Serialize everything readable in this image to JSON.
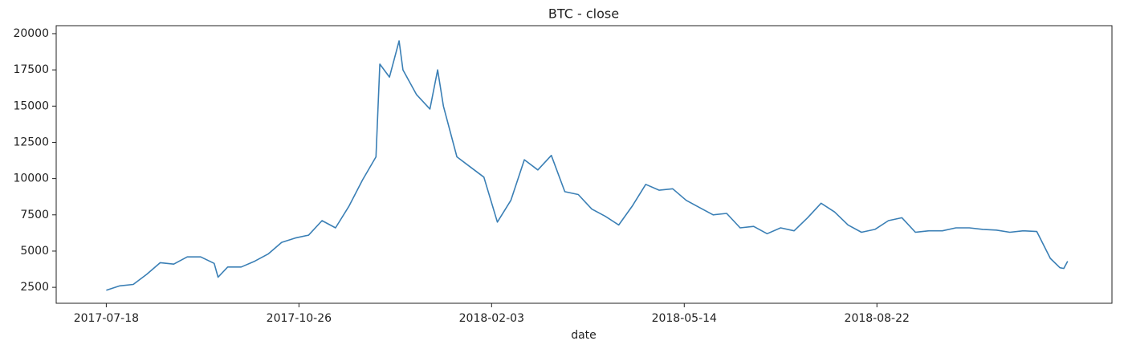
{
  "chart_data": {
    "type": "line",
    "title": "BTC - close",
    "xlabel": "date",
    "x": [
      "2017-07-18",
      "2017-07-25",
      "2017-08-01",
      "2017-08-08",
      "2017-08-15",
      "2017-08-22",
      "2017-08-29",
      "2017-09-05",
      "2017-09-12",
      "2017-09-14",
      "2017-09-19",
      "2017-09-26",
      "2017-10-03",
      "2017-10-10",
      "2017-10-17",
      "2017-10-24",
      "2017-10-31",
      "2017-11-07",
      "2017-11-14",
      "2017-11-21",
      "2017-11-28",
      "2017-12-05",
      "2017-12-07",
      "2017-12-12",
      "2017-12-17",
      "2017-12-19",
      "2017-12-26",
      "2018-01-02",
      "2018-01-06",
      "2018-01-09",
      "2018-01-16",
      "2018-01-23",
      "2018-01-30",
      "2018-02-06",
      "2018-02-13",
      "2018-02-20",
      "2018-02-27",
      "2018-03-06",
      "2018-03-13",
      "2018-03-20",
      "2018-03-27",
      "2018-04-03",
      "2018-04-10",
      "2018-04-17",
      "2018-04-24",
      "2018-05-01",
      "2018-05-08",
      "2018-05-15",
      "2018-05-22",
      "2018-05-29",
      "2018-06-05",
      "2018-06-12",
      "2018-06-19",
      "2018-06-26",
      "2018-07-03",
      "2018-07-10",
      "2018-07-17",
      "2018-07-24",
      "2018-07-31",
      "2018-08-07",
      "2018-08-14",
      "2018-08-21",
      "2018-08-28",
      "2018-09-04",
      "2018-09-11",
      "2018-09-18",
      "2018-09-25",
      "2018-10-02",
      "2018-10-09",
      "2018-10-16",
      "2018-10-23",
      "2018-10-30",
      "2018-11-06",
      "2018-11-13",
      "2018-11-20",
      "2018-11-25",
      "2018-11-27",
      "2018-11-29"
    ],
    "series": [
      {
        "name": "close",
        "color": "#3a7fb5",
        "values": [
          2300,
          2600,
          2700,
          3400,
          4200,
          4100,
          4600,
          4600,
          4150,
          3200,
          3900,
          3900,
          4300,
          4800,
          5600,
          5900,
          6100,
          7100,
          6600,
          8100,
          9900,
          11500,
          17900,
          17000,
          19500,
          17500,
          15800,
          14800,
          17500,
          15000,
          11500,
          10800,
          10100,
          7000,
          8500,
          11300,
          10600,
          11600,
          9100,
          8900,
          7900,
          7400,
          6800,
          8100,
          9600,
          9200,
          9300,
          8500,
          8000,
          7500,
          7600,
          6600,
          6700,
          6200,
          6600,
          6400,
          7300,
          8300,
          7700,
          6800,
          6300,
          6500,
          7100,
          7300,
          6300,
          6400,
          6400,
          6600,
          6600,
          6500,
          6450,
          6300,
          6400,
          6350,
          4500,
          3850,
          3800,
          4300
        ]
      }
    ],
    "xlim": [
      "2017-06-22",
      "2018-12-22"
    ],
    "xticks": [
      "2017-07-18",
      "2017-10-26",
      "2018-02-03",
      "2018-05-14",
      "2018-08-22"
    ],
    "ylim": [
      1400,
      20550
    ],
    "yticks": [
      2500,
      5000,
      7500,
      10000,
      12500,
      15000,
      17500,
      20000
    ],
    "grid": false
  }
}
